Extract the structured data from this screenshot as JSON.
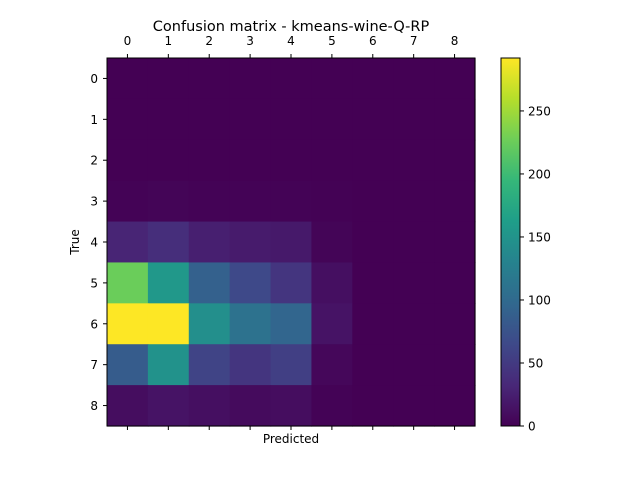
{
  "chart_data": {
    "type": "heatmap",
    "title": "Confusion matrix - kmeans-wine-Q-RP",
    "xlabel": "Predicted",
    "ylabel": "True",
    "x_categories": [
      "0",
      "1",
      "2",
      "3",
      "4",
      "5",
      "6",
      "7",
      "8"
    ],
    "y_categories": [
      "0",
      "1",
      "2",
      "3",
      "4",
      "5",
      "6",
      "7",
      "8"
    ],
    "values": [
      [
        0,
        0,
        0,
        0,
        0,
        0,
        0,
        0,
        0
      ],
      [
        0,
        0,
        0,
        0,
        0,
        0,
        0,
        0,
        0
      ],
      [
        0,
        0,
        0,
        0,
        0,
        0,
        0,
        0,
        0
      ],
      [
        2,
        3,
        2,
        2,
        2,
        1,
        0,
        0,
        0
      ],
      [
        30,
        38,
        25,
        22,
        20,
        3,
        0,
        0,
        0
      ],
      [
        225,
        155,
        90,
        65,
        45,
        12,
        0,
        0,
        0
      ],
      [
        292,
        292,
        145,
        110,
        95,
        15,
        0,
        0,
        0
      ],
      [
        85,
        148,
        60,
        45,
        55,
        5,
        0,
        0,
        0
      ],
      [
        10,
        15,
        12,
        8,
        10,
        2,
        0,
        0,
        0
      ]
    ],
    "colorbar": {
      "vmin": 0,
      "vmax": 292,
      "ticks": [
        0,
        50,
        100,
        150,
        200,
        250
      ]
    },
    "colormap": "viridis",
    "x_tick_position": "top"
  }
}
